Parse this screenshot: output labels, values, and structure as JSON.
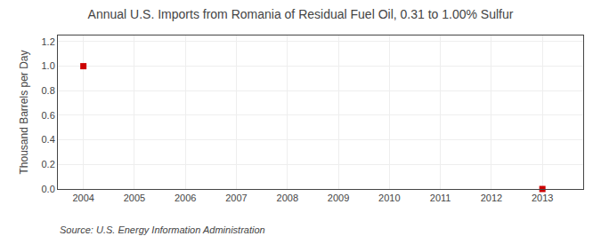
{
  "chart_data": {
    "type": "scatter",
    "title": "Annual U.S. Imports from Romania of Residual Fuel Oil, 0.31 to 1.00% Sulfur",
    "y_label": "Thousand Barrels per Day",
    "annotations": [
      "Source: U.S. Energy Information Administration"
    ],
    "x": [
      2004,
      2013
    ],
    "values": [
      1.0,
      0.0
    ],
    "color": "#cc0000",
    "marker": "square",
    "xlim": [
      2003.5,
      2013.8
    ],
    "xticks": [
      2004,
      2005,
      2006,
      2007,
      2008,
      2009,
      2010,
      2011,
      2012,
      2013
    ],
    "ylim": [
      0.0,
      1.25
    ],
    "yticks": [
      {
        "value": 0.0,
        "label": "0.0"
      },
      0.2,
      0.4,
      0.6,
      0.8,
      {
        "value": 1.0,
        "label": "1.0"
      },
      1.2
    ],
    "grid": true
  }
}
